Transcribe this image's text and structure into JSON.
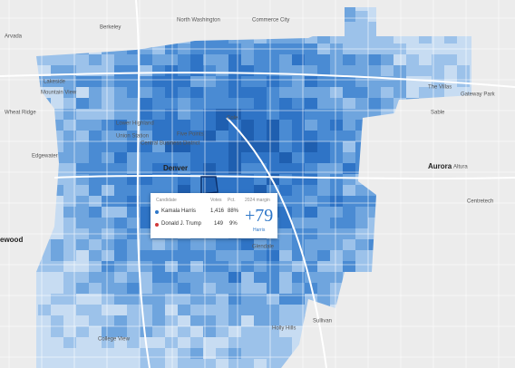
{
  "places": [
    "Berkeley",
    "North Washington",
    "Commerce City",
    "Arvada",
    "Lakeside",
    "Mountain View",
    "Wheat Ridge",
    "Edgewater",
    "Denver",
    "Aurora",
    "Altura",
    "Centretech",
    "Glendale",
    "ewood",
    "Sullivan",
    "Holly Hills",
    "College View",
    "Sable",
    "Gateway Park",
    "The Villas",
    "Lower Highland",
    "Union Station",
    "Central Business District",
    "Five Points",
    "Cole"
  ],
  "tooltip": {
    "headers": [
      "Candidate",
      "Votes",
      "Pct.",
      "2024 margin"
    ],
    "rows": [
      {
        "candidate": "Kamala Harris",
        "votes": "1,416",
        "pct": "88%"
      },
      {
        "candidate": "Donald J. Trump",
        "votes": "149",
        "pct": "9%"
      }
    ],
    "margin": {
      "value": "+79",
      "winner": "Harris"
    }
  }
}
